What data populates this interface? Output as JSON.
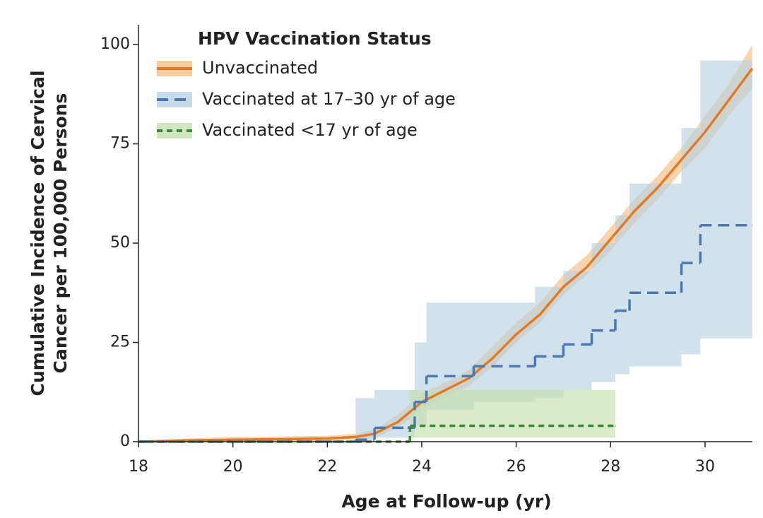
{
  "chart_data": {
    "type": "line",
    "legend_title": "HPV Vaccination Status",
    "xlabel": "Age at Follow-up (yr)",
    "ylabel": [
      "Cumulative Incidence of Cervical",
      "Cancer per 100,000 Persons"
    ],
    "xlim": [
      18,
      31
    ],
    "ylim": [
      0,
      105
    ],
    "xticks": [
      18,
      20,
      22,
      24,
      26,
      28,
      30
    ],
    "yticks": [
      0,
      25,
      50,
      75,
      100
    ],
    "legend": "upper left",
    "series": [
      {
        "name": "Unvaccinated",
        "color": "#e07b2a",
        "band_color": "#f5bf86",
        "dash": "solid",
        "step": false,
        "x": [
          18,
          19,
          20,
          21,
          22,
          22.6,
          23,
          23.5,
          24,
          24.5,
          25,
          25.5,
          26,
          26.5,
          27,
          27.5,
          28,
          28.5,
          29,
          29.5,
          30,
          30.5,
          31
        ],
        "values": [
          0,
          0.3,
          0.5,
          0.6,
          0.8,
          1.2,
          2,
          5,
          10,
          13,
          16,
          21,
          27,
          32,
          39,
          44,
          51,
          58,
          64,
          71,
          78,
          86,
          94
        ],
        "lower": [
          0,
          0,
          0.1,
          0.2,
          0.3,
          0.5,
          1,
          3.5,
          8,
          11,
          14,
          19,
          25,
          30,
          37,
          42,
          48,
          55,
          61,
          68,
          74,
          82,
          89
        ],
        "upper": [
          0,
          0.8,
          1.2,
          1.3,
          1.5,
          2,
          3,
          7,
          12,
          15,
          18,
          24,
          30,
          35,
          42,
          47,
          54,
          61,
          67,
          74,
          82,
          90,
          100
        ]
      },
      {
        "name": "Vaccinated at 17–30 yr of age",
        "color": "#4a78b5",
        "band_color": "#b9d2e2",
        "dash": "dashed",
        "step": true,
        "x": [
          18,
          22.6,
          23,
          23.7,
          23.85,
          24.1,
          25.1,
          26.4,
          27,
          27.6,
          28.1,
          28.4,
          29.5,
          29.9,
          31
        ],
        "values": [
          0,
          0.5,
          3.5,
          3.5,
          10,
          16.5,
          19,
          21.5,
          24.5,
          28,
          33,
          37.5,
          45,
          54.5,
          54.5
        ],
        "lower": [
          0,
          0,
          1,
          1,
          4,
          8,
          10,
          11,
          13,
          15,
          17,
          19,
          22,
          26,
          30.5
        ],
        "upper": [
          0,
          11,
          13,
          13,
          25,
          35,
          35,
          39,
          43,
          50,
          57,
          65,
          79,
          96,
          96
        ]
      },
      {
        "name": "Vaccinated <17 yr of age",
        "color": "#3a8a3a",
        "band_color": "#c6e0ae",
        "dash": "dotted",
        "step": true,
        "x": [
          18,
          23.75,
          28.1
        ],
        "values": [
          0,
          4,
          4
        ],
        "lower": [
          0,
          1,
          1
        ],
        "upper": [
          0,
          13,
          16
        ]
      }
    ]
  }
}
